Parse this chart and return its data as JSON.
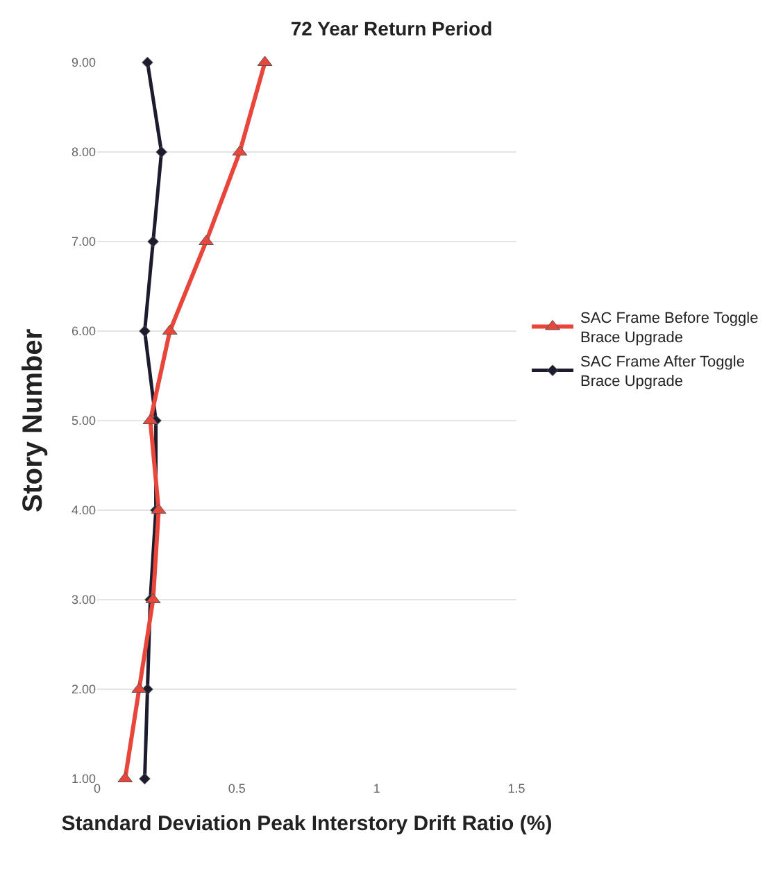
{
  "chart_data": {
    "type": "line",
    "title": "72 Year Return Period",
    "xlabel": "Standard Deviation Peak Interstory Drift Ratio (%)",
    "ylabel": "Story Number",
    "series": [
      {
        "name": "SAC Frame Before Toggle Brace Upgrade",
        "color": "#e8463a",
        "marker": "triangle",
        "x": [
          0.1,
          0.15,
          0.2,
          0.22,
          0.19,
          0.26,
          0.39,
          0.51,
          0.6
        ],
        "values": [
          1,
          2,
          3,
          4,
          5,
          6,
          7,
          8,
          9
        ]
      },
      {
        "name": "SAC Frame After Toggle Brace Upgrade",
        "color": "#1c1c2e",
        "marker": "diamond",
        "x": [
          0.17,
          0.18,
          0.19,
          0.21,
          0.21,
          0.17,
          0.2,
          0.23,
          0.18
        ],
        "values": [
          1,
          2,
          3,
          4,
          5,
          6,
          7,
          8,
          9
        ]
      }
    ],
    "xlim": [
      0,
      1.5
    ],
    "xticks": [
      0,
      0.5,
      1,
      1.5
    ],
    "ylim": [
      1,
      9
    ],
    "yticks": [
      {
        "value": 1,
        "label": "1.00"
      },
      {
        "value": 2,
        "label": "2.00"
      },
      {
        "value": 3,
        "label": "3.00"
      },
      {
        "value": 4,
        "label": "4.00"
      },
      {
        "value": 5,
        "label": "5.00"
      },
      {
        "value": 6,
        "label": "6.00"
      },
      {
        "value": 7,
        "label": "7.00"
      },
      {
        "value": 8,
        "label": "8.00"
      },
      {
        "value": 9,
        "label": "9.00"
      }
    ],
    "grid": "y",
    "legend": "right"
  }
}
